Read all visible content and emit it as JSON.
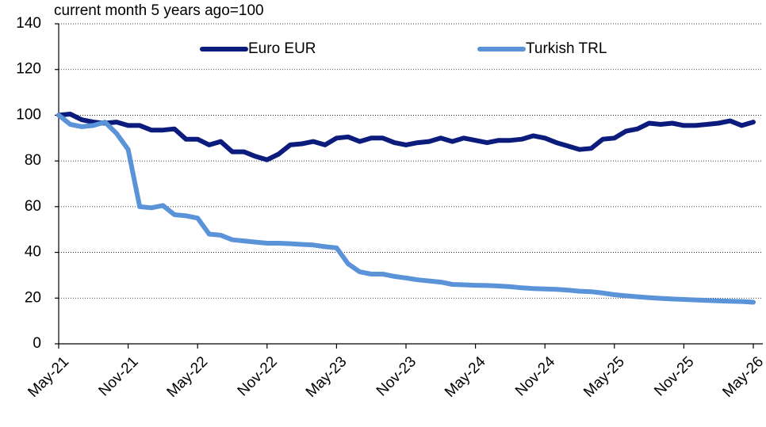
{
  "chart_data": {
    "type": "line",
    "subtitle": "current month 5 years ago=100",
    "categories": [
      "May-21",
      null,
      null,
      null,
      null,
      null,
      "Nov-21",
      null,
      null,
      null,
      null,
      null,
      "May-22",
      null,
      null,
      null,
      null,
      null,
      "Nov-22",
      null,
      null,
      null,
      null,
      null,
      "May-23",
      null,
      null,
      null,
      null,
      null,
      "Nov-23",
      null,
      null,
      null,
      null,
      null,
      "May-24",
      null,
      null,
      null,
      null,
      null,
      "Nov-24",
      null,
      null,
      null,
      null,
      null,
      "May-25",
      null,
      null,
      null,
      null,
      null,
      "Nov-25",
      null,
      null,
      null,
      null,
      null,
      "May-26"
    ],
    "series": [
      {
        "name": "Euro EUR",
        "color": "#0c1c7c",
        "values": [
          100,
          100.5,
          98,
          97,
          96.5,
          97,
          95.5,
          95.5,
          93.5,
          93.5,
          94,
          89.5,
          89.5,
          87,
          88.5,
          84,
          84,
          82,
          80.5,
          83,
          87,
          87.5,
          88.5,
          87,
          90,
          90.5,
          88.5,
          90,
          90,
          88,
          87,
          88,
          88.5,
          90,
          88.5,
          90,
          89,
          88,
          89,
          89,
          89.5,
          91,
          90,
          88,
          86.5,
          85,
          85.5,
          89.5,
          90,
          93,
          94,
          96.5,
          96,
          96.5,
          95.5,
          95.5,
          96,
          96.5,
          97.5,
          95.5,
          97
        ]
      },
      {
        "name": "Turkish TRL",
        "color": "#5b93d9",
        "values": [
          100,
          96,
          95,
          95.5,
          97,
          92,
          85,
          60,
          59.5,
          60.5,
          56.5,
          56,
          55,
          48,
          47.5,
          45.5,
          45,
          44.5,
          44,
          44,
          43.8,
          43.5,
          43.2,
          42.5,
          42,
          35,
          31.5,
          30.5,
          30.5,
          29.5,
          28.8,
          28,
          27.5,
          27,
          26,
          25.8,
          25.6,
          25.5,
          25.3,
          25,
          24.5,
          24.2,
          24,
          23.8,
          23.5,
          23,
          22.8,
          22.2,
          21.5,
          21,
          20.6,
          20.2,
          19.9,
          19.6,
          19.4,
          19.2,
          19,
          18.8,
          18.6,
          18.5,
          18.2
        ]
      }
    ],
    "ylim": [
      0,
      140
    ],
    "yticks": [
      0,
      20,
      40,
      60,
      80,
      100,
      120,
      140
    ],
    "grid": true,
    "legend": "top"
  }
}
